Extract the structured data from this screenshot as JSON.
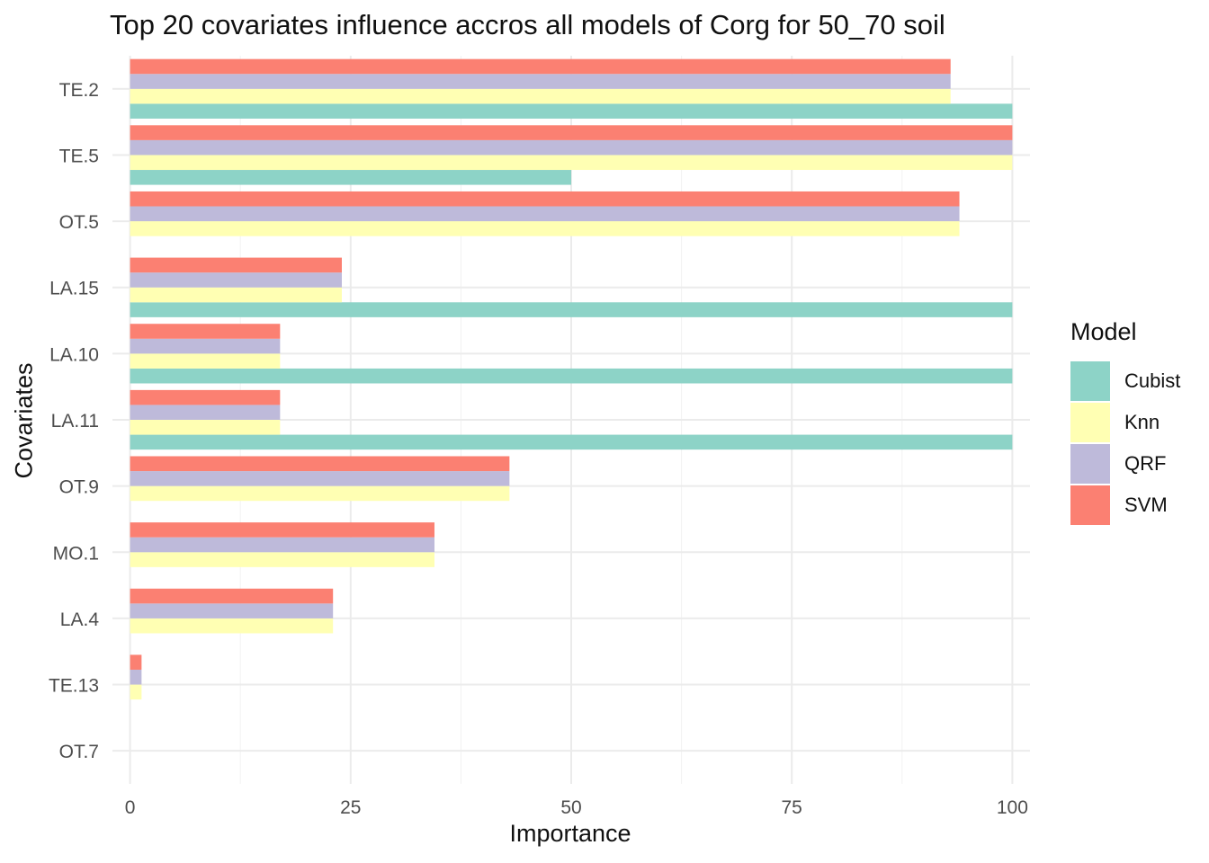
{
  "chart_data": {
    "type": "bar",
    "orientation": "horizontal",
    "title": "Top 20 covariates influence accros all models of Corg for 50_70 soil",
    "xlabel": "Importance",
    "ylabel": "Covariates",
    "xlim": [
      -2,
      102
    ],
    "xticks": [
      0,
      25,
      50,
      75,
      100
    ],
    "grid": true,
    "legend_title": "Model",
    "legend_position": "right",
    "categories": [
      "TE.2",
      "TE.5",
      "OT.5",
      "LA.15",
      "LA.10",
      "LA.11",
      "OT.9",
      "MO.1",
      "LA.4",
      "TE.13",
      "OT.7"
    ],
    "series": [
      {
        "name": "Cubist",
        "color": "#8DD3C7",
        "values": [
          100,
          50,
          null,
          100,
          100,
          100,
          null,
          null,
          null,
          null,
          null
        ]
      },
      {
        "name": "Knn",
        "color": "#FFFFB3",
        "values": [
          93,
          100,
          94,
          24,
          17,
          17,
          43,
          34.5,
          23,
          1.3,
          null
        ]
      },
      {
        "name": "QRF",
        "color": "#BEBADA",
        "values": [
          93,
          100,
          94,
          24,
          17,
          17,
          43,
          34.5,
          23,
          1.3,
          null
        ]
      },
      {
        "name": "SVM",
        "color": "#FB8072",
        "values": [
          93,
          100,
          94,
          24,
          17,
          17,
          43,
          34.5,
          23,
          1.3,
          null
        ]
      }
    ]
  }
}
